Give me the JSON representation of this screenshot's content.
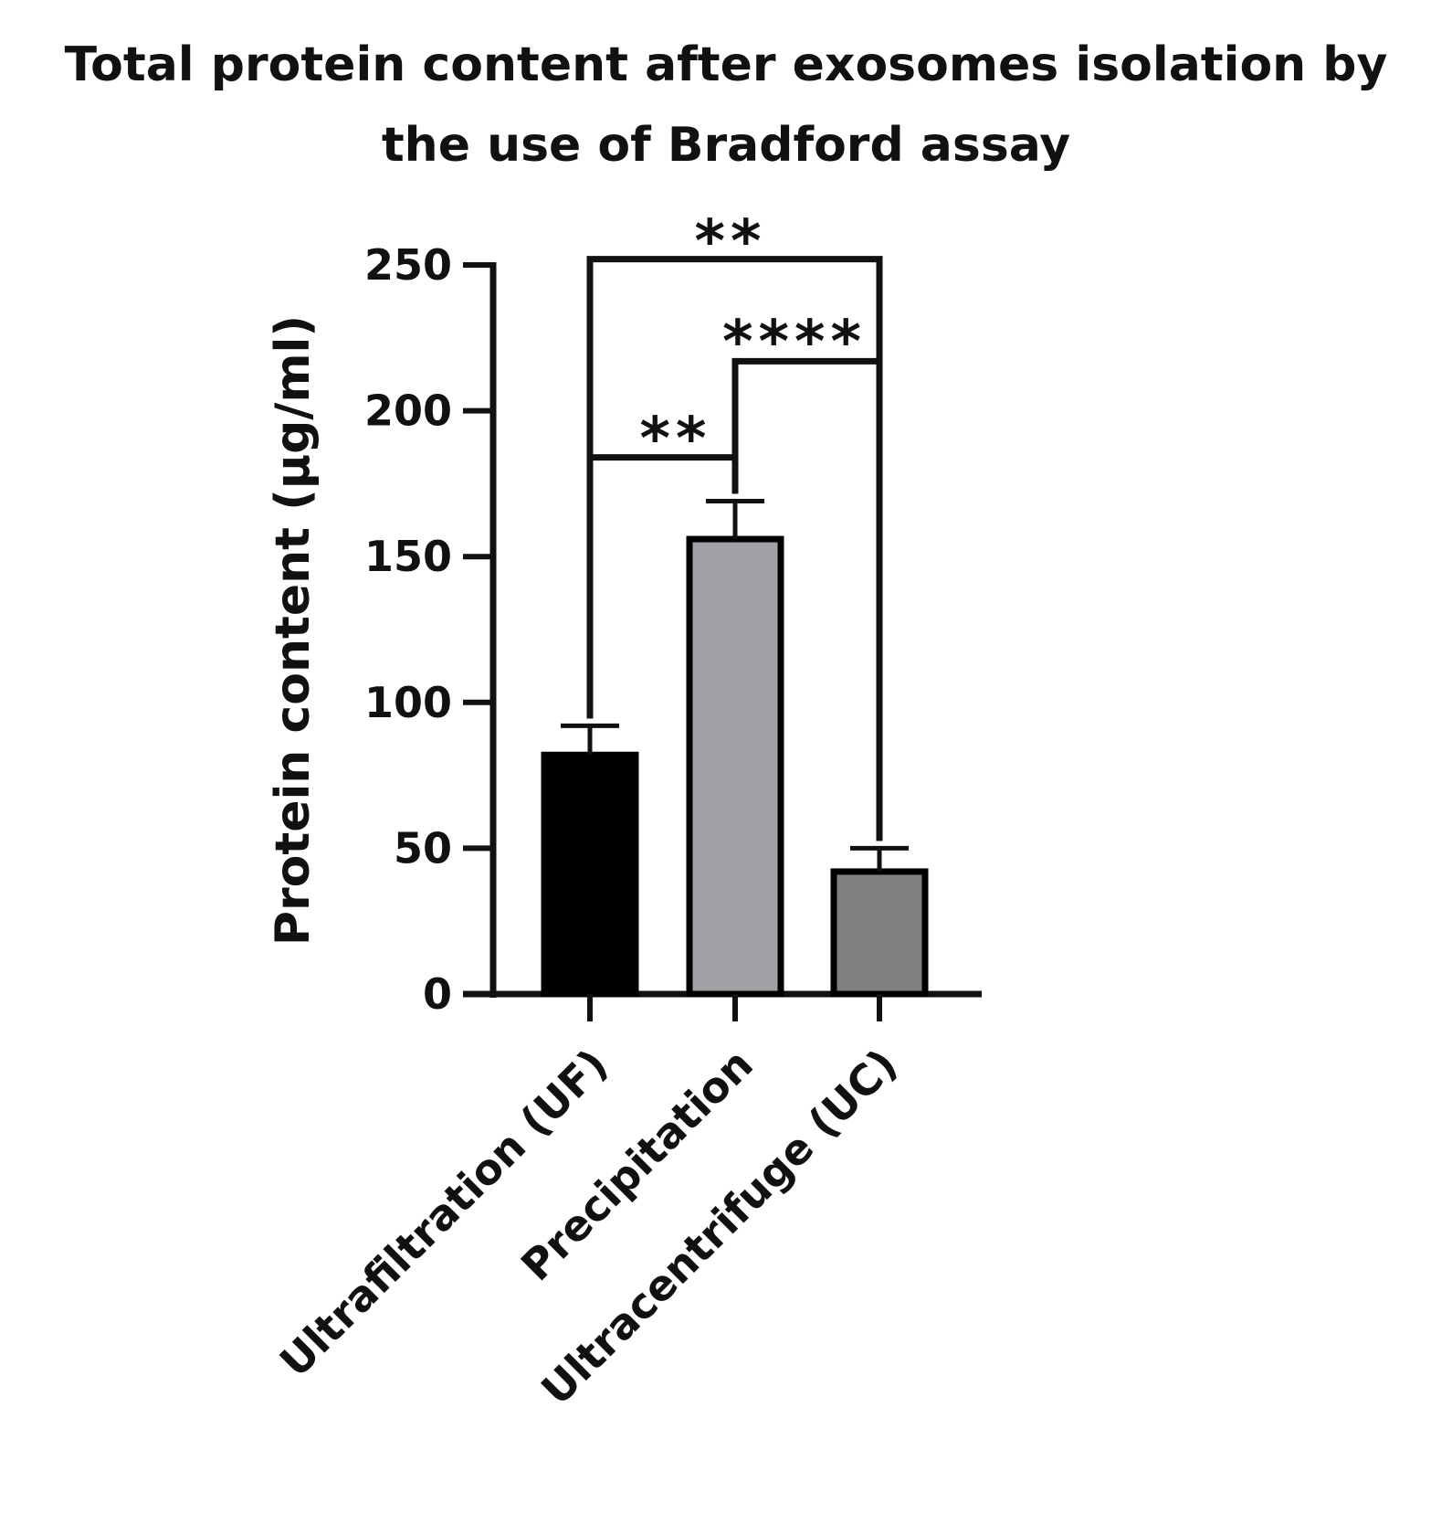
{
  "chart_data": {
    "type": "bar",
    "title_lines": [
      "Total protein content after exosomes isolation by",
      "the use of Bradford assay"
    ],
    "ylabel": "Protein content (µg/ml)",
    "xlabel": "",
    "ylim": [
      0,
      250
    ],
    "yticks": [
      "0",
      "50",
      "100",
      "150",
      "200",
      "250"
    ],
    "categories": [
      "Ultrafiltration (UF)",
      "Precipitation",
      "Ultracentrifuge (UC)"
    ],
    "values": [
      82,
      156,
      42
    ],
    "errors": [
      10,
      13,
      8
    ],
    "bar_colors": [
      "#000000",
      "#a2a2a6",
      "#808080"
    ],
    "significance": [
      {
        "from": 0,
        "to": 1,
        "label": "**",
        "y": 184
      },
      {
        "from": 1,
        "to": 2,
        "label": "****",
        "y": 217
      },
      {
        "from": 0,
        "to": 2,
        "label": "**",
        "y": 252
      }
    ],
    "grid": false,
    "legend": "none"
  }
}
